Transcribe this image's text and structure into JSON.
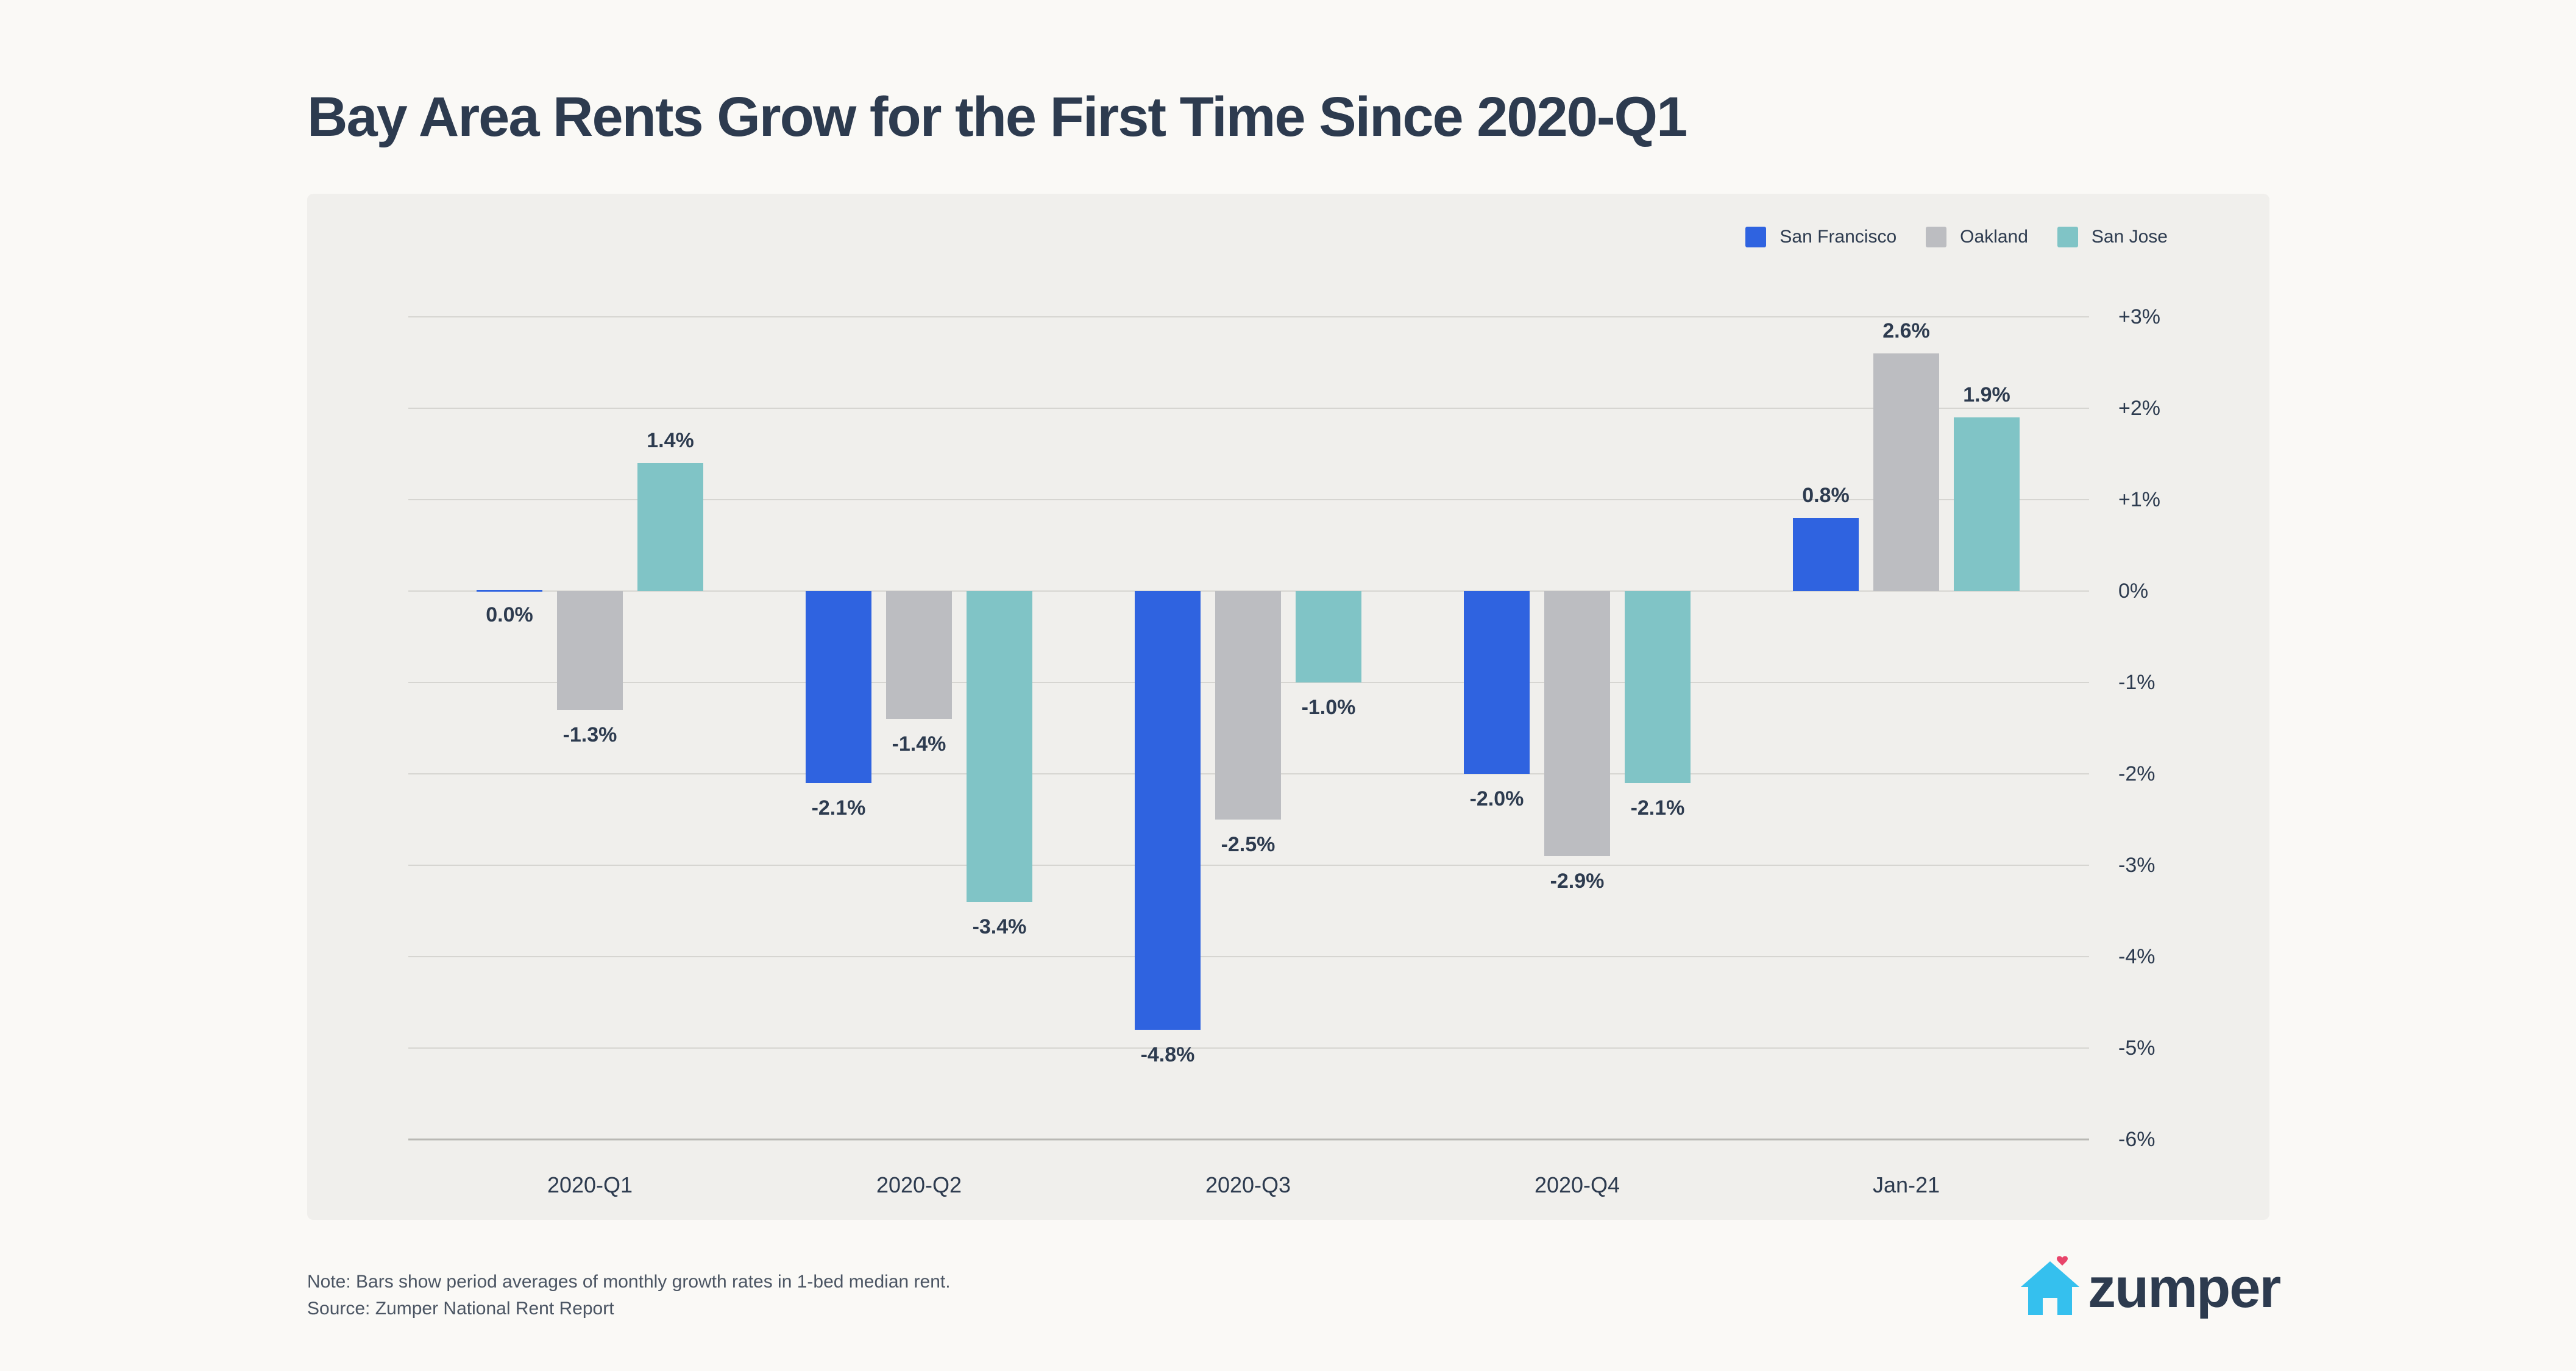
{
  "title": "Bay Area Rents Grow for the First Time Since 2020-Q1",
  "note": "Note: Bars show period averages of monthly growth rates in 1-bed median rent.",
  "source": "Source: Zumper National Rent Report",
  "logo": {
    "text": "zumper",
    "icon": "house-icon"
  },
  "colors": {
    "san_francisco": "#2f63e0",
    "oakland": "#bcbdc1",
    "san_jose": "#80c4c6",
    "text": "#2d3b4f",
    "grid": "#d6d5d1"
  },
  "chart_data": {
    "type": "bar",
    "title": "Bay Area Rents Grow for the First Time Since 2020-Q1",
    "categories": [
      "2020-Q1",
      "2020-Q2",
      "2020-Q3",
      "2020-Q4",
      "Jan-21"
    ],
    "series": [
      {
        "name": "San Francisco",
        "values": [
          0.0,
          -2.1,
          -4.8,
          -2.0,
          0.8
        ],
        "labels": [
          "0.0%",
          "-2.1%",
          "-4.8%",
          "-2.0%",
          "0.8%"
        ]
      },
      {
        "name": "Oakland",
        "values": [
          -1.3,
          -1.4,
          -2.5,
          -2.9,
          2.6
        ],
        "labels": [
          "-1.3%",
          "-1.4%",
          "-2.5%",
          "-2.9%",
          "2.6%"
        ]
      },
      {
        "name": "San Jose",
        "values": [
          1.4,
          -3.4,
          -1.0,
          -2.1,
          1.9
        ],
        "labels": [
          "1.4%",
          "-3.4%",
          "-1.0%",
          "-2.1%",
          "1.9%"
        ]
      }
    ],
    "ylim": [
      -6,
      3
    ],
    "yticks": [
      3,
      2,
      1,
      0,
      -1,
      -2,
      -3,
      -4,
      -5,
      -6
    ],
    "ytick_labels": [
      "+3%",
      "+2%",
      "+1%",
      "0%",
      "-1%",
      "-2%",
      "-3%",
      "-4%",
      "-5%",
      "-6%"
    ],
    "y_axis_side": "right",
    "grid": true,
    "legend": "top-right"
  }
}
